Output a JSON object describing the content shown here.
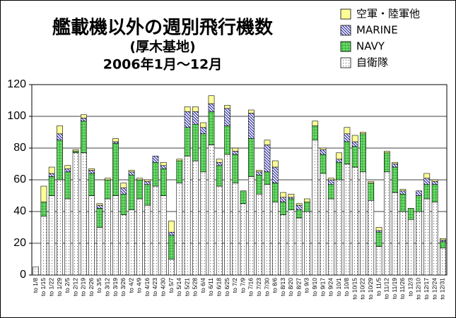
{
  "chart_data": {
    "type": "stacked_bar",
    "title": "艦載機以外の週別飛行機数",
    "subtitle": "(厚木基地)",
    "period": "2006年1月～12月",
    "categories": [
      "to 1/8",
      "to 1/15",
      "to 1/22",
      "to 1/29",
      "to 2/5",
      "to 2/12",
      "to 2/19",
      "to 2/26",
      "to 3/5",
      "to 3/12",
      "to 3/19",
      "to 3/26",
      "to 4/2",
      "to 4/9",
      "to 4/16",
      "to 4/23",
      "to 4/30",
      "to 5/7",
      "to 5/14",
      "to 5/21",
      "to 5/28",
      "to 6/4",
      "to 6/11",
      "to 6/18",
      "to 6/25",
      "to 7/2",
      "to 7/9",
      "to 7/16",
      "to 7/23",
      "to 7/30",
      "to 8/6",
      "to 8/13",
      "to 8/20",
      "to 8/27",
      "to 9/3",
      "to 9/10",
      "to 9/17",
      "to 9/24",
      "to 10/1",
      "to 10/8",
      "to 10/15",
      "to 10/22",
      "to 10/29",
      "to 11/5",
      "to 11/12",
      "to 11/19",
      "to 11/26",
      "to 12/3",
      "to 12/10",
      "to 12/17",
      "to 12/24",
      "to 12/31"
    ],
    "series": [
      {
        "name": "自衛隊",
        "color": "#ffffff",
        "pattern": "dots",
        "values": [
          5,
          37,
          50,
          60,
          48,
          77,
          77,
          50,
          30,
          48,
          50,
          38,
          41,
          48,
          44,
          56,
          50,
          10,
          58,
          75,
          72,
          65,
          82,
          56,
          76,
          58,
          45,
          62,
          51,
          57,
          46,
          38,
          41,
          36,
          40,
          85,
          64,
          48,
          60,
          70,
          68,
          65,
          47,
          18,
          65,
          52,
          40,
          35,
          40,
          48,
          46,
          17
        ]
      },
      {
        "name": "NAVY",
        "color": "#66dd66",
        "pattern": "grid",
        "values": [
          0,
          9,
          12,
          25,
          17,
          1,
          20,
          14,
          12,
          12,
          33,
          13,
          22,
          12,
          13,
          15,
          17,
          15,
          14,
          18,
          23,
          24,
          21,
          13,
          18,
          18,
          8,
          24,
          12,
          8,
          12,
          8,
          7,
          5,
          6,
          9,
          12,
          9,
          11,
          14,
          13,
          24,
          11,
          9,
          12,
          16,
          11,
          7,
          10,
          9,
          11,
          4
        ]
      },
      {
        "name": "MARINE",
        "color": "#3333aa",
        "pattern": "hatch",
        "values": [
          0,
          0,
          2,
          4,
          2,
          0,
          2,
          2,
          2,
          0,
          1,
          4,
          2,
          0,
          2,
          4,
          2,
          2,
          0,
          10,
          8,
          4,
          5,
          2,
          11,
          2,
          0,
          16,
          2,
          17,
          10,
          3,
          1,
          3,
          0,
          0,
          3,
          3,
          2,
          5,
          3,
          0,
          0,
          1,
          0,
          2,
          2,
          0,
          3,
          4,
          2,
          1
        ]
      },
      {
        "name": "空軍・陸軍他",
        "color": "#ffff99",
        "pattern": "solid",
        "values": [
          0,
          10,
          4,
          5,
          2,
          1,
          2,
          1,
          1,
          1,
          2,
          3,
          1,
          1,
          1,
          0,
          2,
          7,
          1,
          3,
          3,
          3,
          5,
          2,
          2,
          2,
          0,
          2,
          1,
          3,
          4,
          3,
          2,
          1,
          2,
          3,
          1,
          1,
          4,
          4,
          4,
          1,
          1,
          2,
          1,
          1,
          1,
          0,
          0,
          3,
          1,
          1
        ]
      }
    ],
    "ylim": [
      0,
      120
    ],
    "yticks": [
      0,
      20,
      40,
      60,
      80,
      100,
      120
    ],
    "grid": true,
    "legend": "top-right"
  }
}
